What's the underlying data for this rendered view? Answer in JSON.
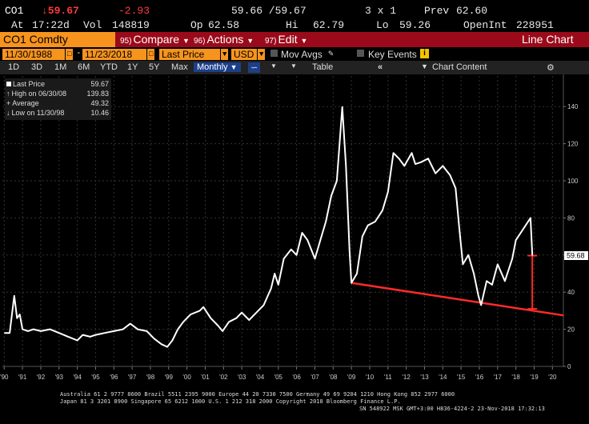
{
  "header": {
    "ticker": "CO1",
    "last": "↓59.67",
    "change": "-2.93",
    "bid_ask": "59.66 /59.67",
    "size": "3 x 1",
    "prev_label": "Prev",
    "prev": "62.60",
    "at_label": "At",
    "time": "17:22d",
    "vol_label": "Vol",
    "vol": "148819",
    "op_label": "Op",
    "op": "62.58",
    "hi_label": "Hi",
    "hi": "62.79",
    "lo_label": "Lo",
    "lo": "59.26",
    "oi_label": "OpenInt",
    "oi": "228951"
  },
  "menu": {
    "security": "CO1 Comdty",
    "compare_num": "95)",
    "compare": "Compare",
    "actions_num": "96)",
    "actions": "Actions",
    "edit_num": "97)",
    "edit": "Edit",
    "chart_type": "Line Chart"
  },
  "params": {
    "start_date": "11/30/1988",
    "end_date": "11/23/2018",
    "field": "Last Price",
    "currency": "USD",
    "mov_avgs": "Mov Avgs",
    "key_events": "Key Events"
  },
  "toolbar": {
    "periods": [
      "1D",
      "3D",
      "1M",
      "6M",
      "YTD",
      "1Y",
      "5Y",
      "Max"
    ],
    "frequency": "Monthly",
    "table": "Table",
    "chart_content": "Chart Content"
  },
  "legend": {
    "last_label": "Last Price",
    "last_value": "59.67",
    "high_label": "High on 06/30/08",
    "high_value": "139.83",
    "avg_label": "Average",
    "avg_value": "49.32",
    "low_label": "Low on 11/30/98",
    "low_value": "10.46"
  },
  "footer": {
    "line1": "Australia 61 2 9777 8600 Brazil 5511 2395 9000 Europe 44 20 7330 7500 Germany 49 69 9204 1210 Hong Kong 852 2977 6000",
    "line2": "Japan 81 3 3201 8900        Singapore 65 6212 1000        U.S. 1 212 318 2000        Copyright 2018 Bloomberg Finance L.P.",
    "line3": "SN 548922 MSK   GMT+3:00 H836-4224-2 23-Nov-2018 17:32:13"
  },
  "colors": {
    "accent_orange": "#f7941d",
    "menu_red": "#9b0a1a",
    "trendline": "#ff2a2a",
    "price_line": "#ffffff"
  },
  "chart_data": {
    "type": "line",
    "title": "",
    "xlabel": "",
    "ylabel": "",
    "xlim": [
      1989.9,
      2020.6
    ],
    "ylim": [
      0,
      150
    ],
    "yticks": [
      0,
      20,
      40,
      60,
      80,
      100,
      120,
      140
    ],
    "ytick_labels": [
      "0",
      "20",
      "40",
      "60",
      "80",
      "100",
      "120",
      "140"
    ],
    "x_tick_labels": [
      "'90",
      "'91",
      "'92",
      "'93",
      "'94",
      "'95",
      "'96",
      "'97",
      "'98",
      "'99",
      "'00",
      "'01",
      "'02",
      "'03",
      "'04",
      "'05",
      "'06",
      "'07",
      "'08",
      "'09",
      "'10",
      "'11",
      "'12",
      "'13",
      "'14",
      "'15",
      "'16",
      "'17",
      "'18",
      "'19",
      "'20"
    ],
    "x_tick_values": [
      1990,
      1991,
      1992,
      1993,
      1994,
      1995,
      1996,
      1997,
      1998,
      1999,
      2000,
      2001,
      2002,
      2003,
      2004,
      2005,
      2006,
      2007,
      2008,
      2009,
      2010,
      2011,
      2012,
      2013,
      2014,
      2015,
      2016,
      2017,
      2018,
      2019,
      2020
    ],
    "last_value_label": "59.68",
    "grid": true,
    "series": [
      {
        "x": [
          1990.0,
          1990.3,
          1990.55,
          1990.7,
          1990.85,
          1991.0,
          1991.3,
          1991.6,
          1992.0,
          1992.5,
          1993.0,
          1993.5,
          1994.0,
          1994.3,
          1994.7,
          1995.0,
          1995.5,
          1996.0,
          1996.5,
          1996.9,
          1997.3,
          1997.8,
          1998.2,
          1998.6,
          1998.92,
          1999.2,
          1999.5,
          1999.8,
          2000.2,
          2000.7,
          2000.9,
          2001.3,
          2001.7,
          2001.95,
          2002.3,
          2002.7,
          2003.0,
          2003.4,
          2003.8,
          2004.2,
          2004.6,
          2004.8,
          2005.0,
          2005.3,
          2005.7,
          2006.0,
          2006.3,
          2006.6,
          2007.0,
          2007.3,
          2007.6,
          2007.9,
          2008.2,
          2008.5,
          2008.7,
          2008.9,
          2009.0,
          2009.3,
          2009.6,
          2009.9,
          2010.3,
          2010.7,
          2011.0,
          2011.3,
          2011.6,
          2011.9,
          2012.3,
          2012.5,
          2012.8,
          2013.2,
          2013.6,
          2014.0,
          2014.4,
          2014.7,
          2014.9,
          2015.1,
          2015.4,
          2015.7,
          2015.95,
          2016.1,
          2016.4,
          2016.7,
          2017.0,
          2017.4,
          2017.8,
          2018.0,
          2018.4,
          2018.8,
          2018.9
        ],
        "y": [
          18,
          18,
          38,
          26,
          28,
          20,
          19,
          20,
          19,
          20,
          18,
          16,
          14,
          17,
          16,
          17,
          18,
          19,
          20,
          23,
          20,
          19,
          15,
          12,
          10.5,
          14,
          20,
          24,
          28,
          30,
          32,
          26,
          22,
          19,
          24,
          26,
          29,
          25,
          29,
          33,
          42,
          50,
          44,
          58,
          63,
          60,
          72,
          68,
          58,
          68,
          78,
          92,
          100,
          139.8,
          108,
          62,
          45,
          50,
          70,
          76,
          78,
          84,
          94,
          115,
          112,
          108,
          115,
          109,
          110,
          112,
          104,
          108,
          103,
          96,
          75,
          55,
          60,
          50,
          38,
          33,
          46,
          44,
          55,
          46,
          58,
          68,
          74,
          80,
          59.7
        ]
      }
    ],
    "trendline": {
      "x": [
        2009.0,
        2020.6
      ],
      "y": [
        45,
        27.5
      ]
    },
    "range_marker": {
      "x": 2018.9,
      "y_top": 59.7,
      "y_bottom": 31
    }
  }
}
